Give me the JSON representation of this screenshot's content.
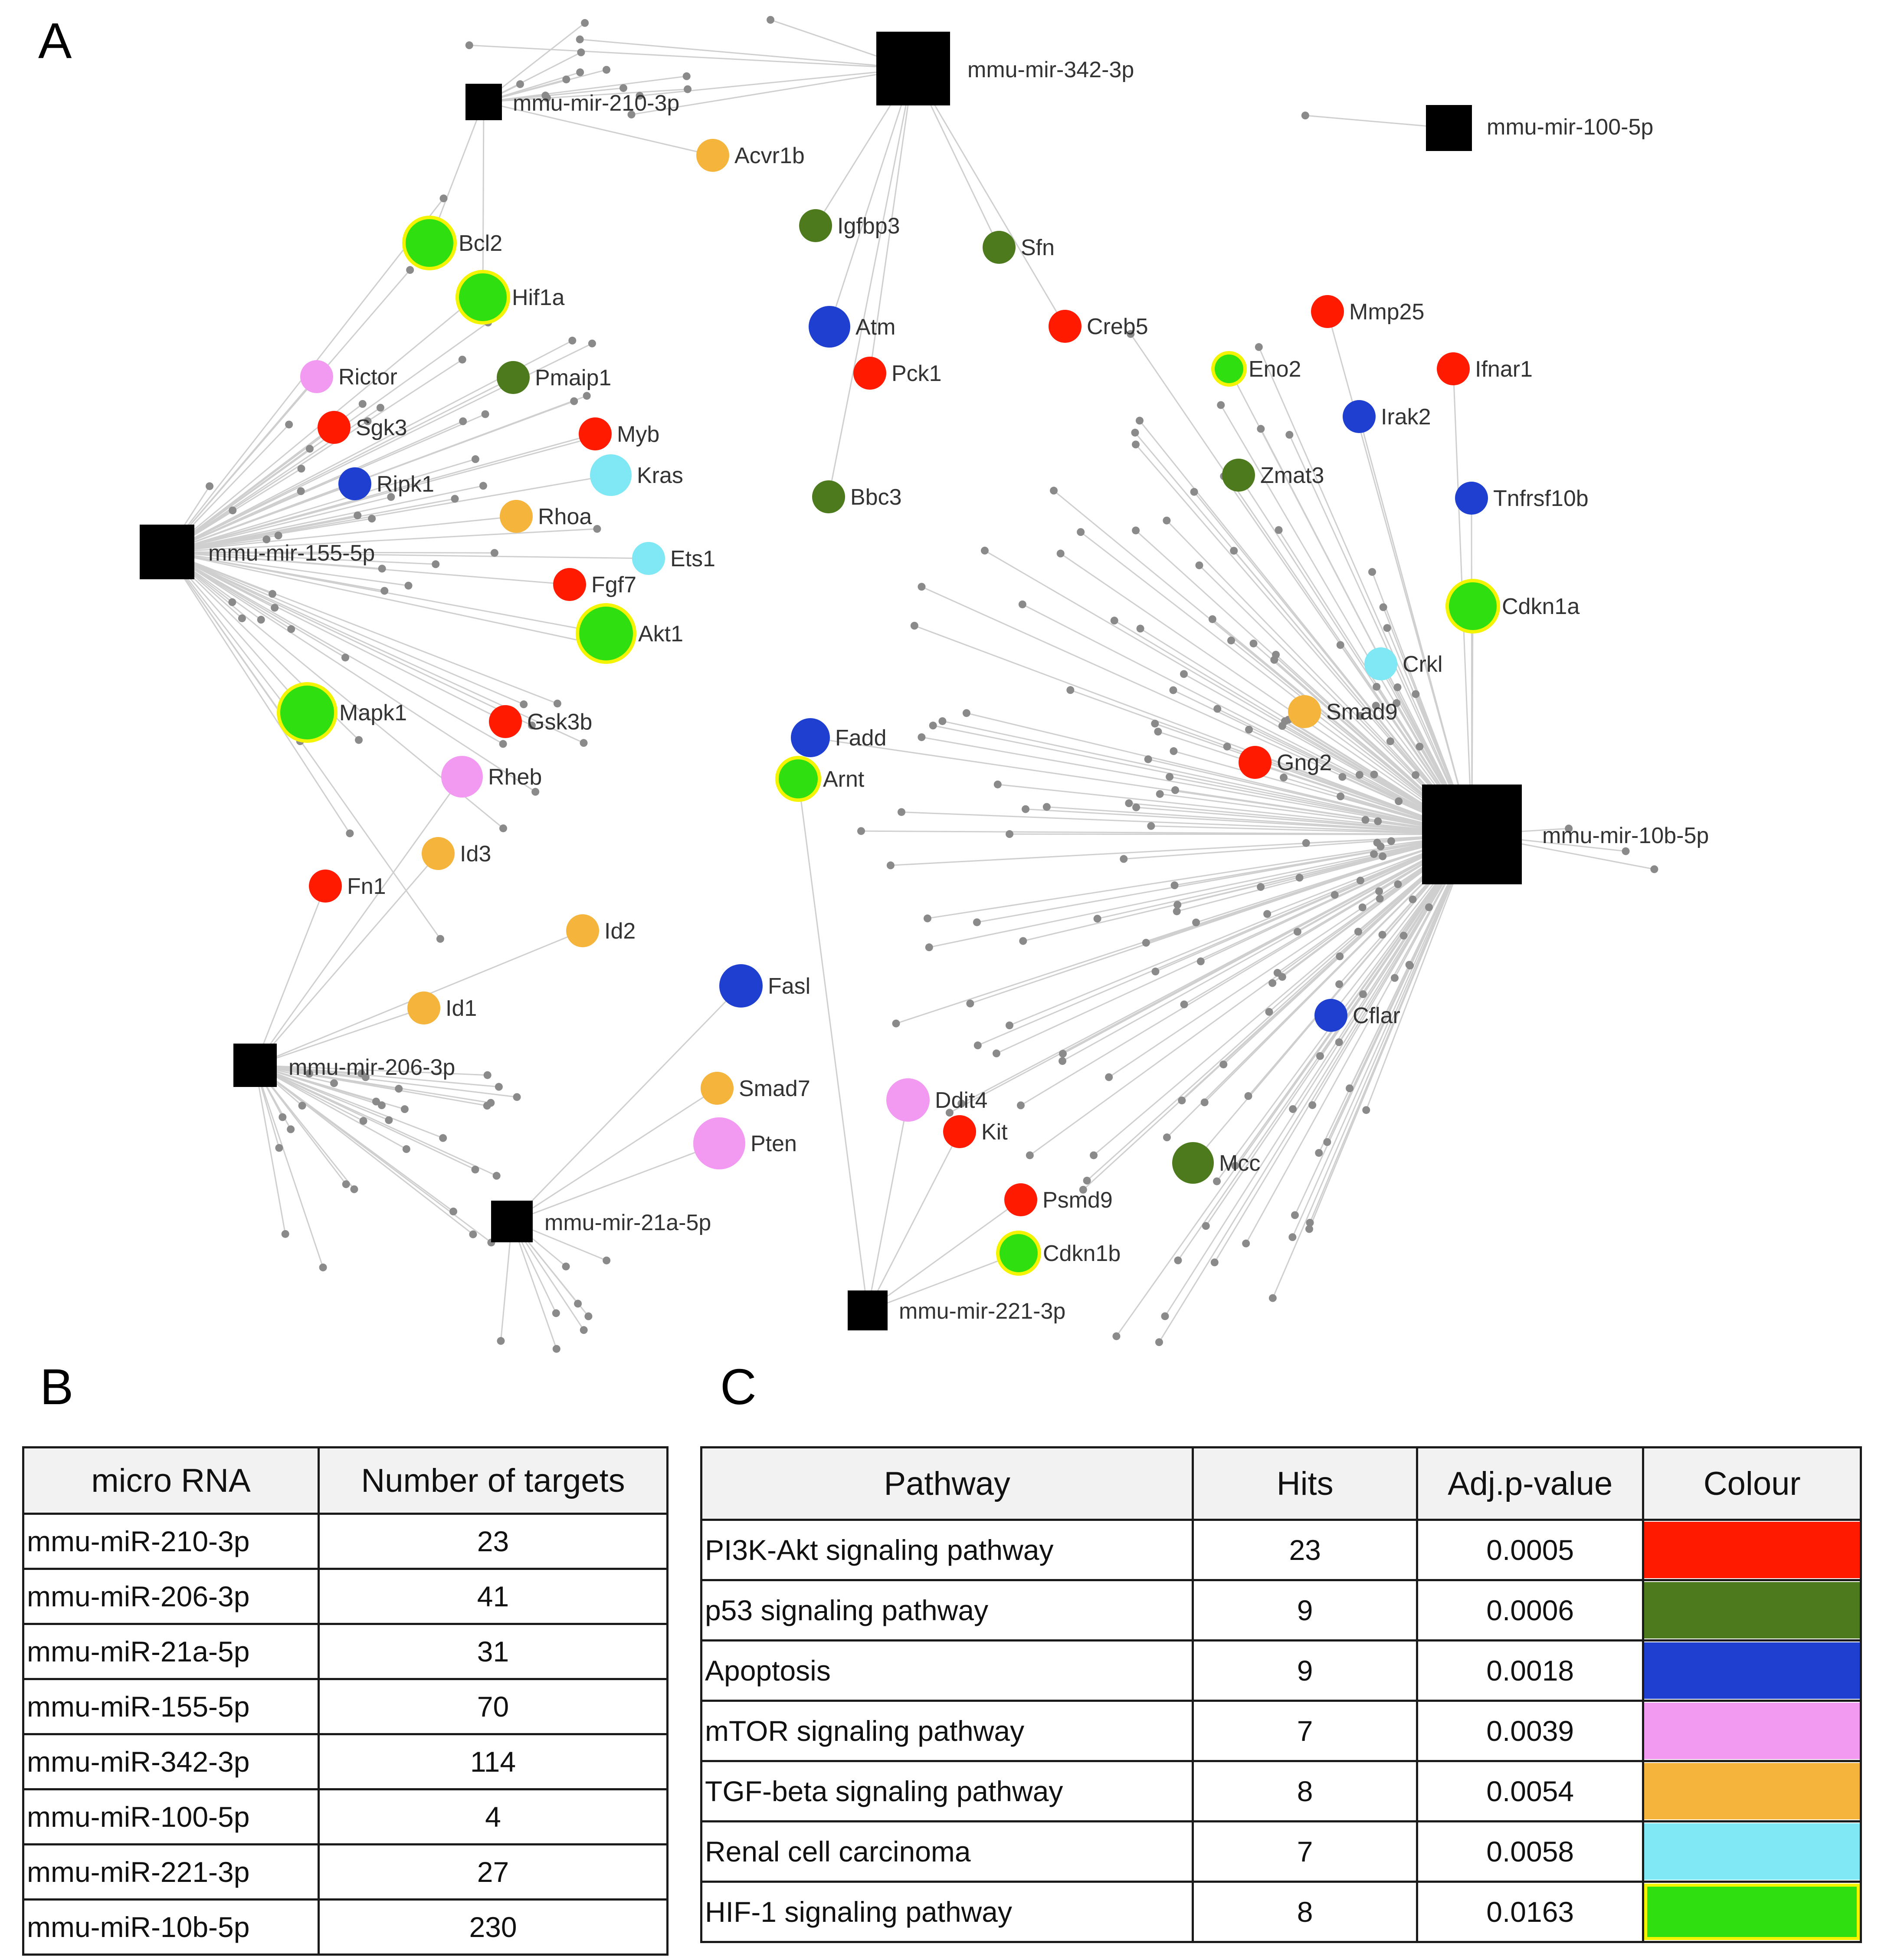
{
  "panels": {
    "a": "A",
    "b": "B",
    "c": "C"
  },
  "colors": {
    "pi3k": "#ff1a00",
    "p53": "#4e7a1e",
    "apoptosis": "#1e3fd0",
    "mtor": "#f29af2",
    "tgf": "#f5b43c",
    "renal": "#7fe8f4",
    "hif": "#2fdf10",
    "hif_ring": "#f4f400",
    "mirna": "#000000",
    "target": "#8a8a8a",
    "edge": "#cfcfcf"
  },
  "mirnas": [
    {
      "id": "m342",
      "label": "mmu-mir-342-3p"
    },
    {
      "id": "m210",
      "label": "mmu-mir-210-3p"
    },
    {
      "id": "m100",
      "label": "mmu-mir-100-5p"
    },
    {
      "id": "m155",
      "label": "mmu-mir-155-5p"
    },
    {
      "id": "m10b",
      "label": "mmu-mir-10b-5p"
    },
    {
      "id": "m206",
      "label": "mmu-mir-206-3p"
    },
    {
      "id": "m21a",
      "label": "mmu-mir-21a-5p"
    },
    {
      "id": "m221",
      "label": "mmu-mir-221-3p"
    }
  ],
  "genes": [
    {
      "label": "Acvr1b",
      "pathway": "tgf",
      "mirna": "m210"
    },
    {
      "label": "Bcl2",
      "pathway": "hif",
      "mirna": "m210"
    },
    {
      "label": "Hif1a",
      "pathway": "hif",
      "mirna": "m210"
    },
    {
      "label": "Igfbp3",
      "pathway": "p53",
      "mirna": "m342"
    },
    {
      "label": "Sfn",
      "pathway": "p53",
      "mirna": "m342"
    },
    {
      "label": "Creb5",
      "pathway": "pi3k",
      "mirna": "m342"
    },
    {
      "label": "Atm",
      "pathway": "apoptosis",
      "mirna": "m342"
    },
    {
      "label": "Pck1",
      "pathway": "pi3k",
      "mirna": "m342"
    },
    {
      "label": "Bbc3",
      "pathway": "p53",
      "mirna": "m342"
    },
    {
      "label": "Rictor",
      "pathway": "mtor",
      "mirna": "m155"
    },
    {
      "label": "Pmaip1",
      "pathway": "p53",
      "mirna": "m155"
    },
    {
      "label": "Sgk3",
      "pathway": "pi3k",
      "mirna": "m155"
    },
    {
      "label": "Myb",
      "pathway": "pi3k",
      "mirna": "m155"
    },
    {
      "label": "Kras",
      "pathway": "renal",
      "mirna": "m155"
    },
    {
      "label": "Ripk1",
      "pathway": "apoptosis",
      "mirna": "m155"
    },
    {
      "label": "Rhoa",
      "pathway": "tgf",
      "mirna": "m155"
    },
    {
      "label": "Ets1",
      "pathway": "renal",
      "mirna": "m155"
    },
    {
      "label": "Fgf7",
      "pathway": "pi3k",
      "mirna": "m155"
    },
    {
      "label": "Akt1",
      "pathway": "hif",
      "mirna": "m155"
    },
    {
      "label": "Mapk1",
      "pathway": "hif",
      "mirna": "m155"
    },
    {
      "label": "Gsk3b",
      "pathway": "pi3k",
      "mirna": "m155"
    },
    {
      "label": "Rheb",
      "pathway": "mtor",
      "mirna": "m206"
    },
    {
      "label": "Id3",
      "pathway": "tgf",
      "mirna": "m206"
    },
    {
      "label": "Fn1",
      "pathway": "pi3k",
      "mirna": "m206"
    },
    {
      "label": "Id2",
      "pathway": "tgf",
      "mirna": "m206"
    },
    {
      "label": "Id1",
      "pathway": "tgf",
      "mirna": "m206"
    },
    {
      "label": "Fasl",
      "pathway": "apoptosis",
      "mirna": "m21a"
    },
    {
      "label": "Smad7",
      "pathway": "tgf",
      "mirna": "m21a"
    },
    {
      "label": "Pten",
      "pathway": "mtor",
      "mirna": "m21a"
    },
    {
      "label": "Fadd",
      "pathway": "apoptosis",
      "mirna": "m10b"
    },
    {
      "label": "Arnt",
      "pathway": "hif",
      "mirna": "m221"
    },
    {
      "label": "Ddit4",
      "pathway": "mtor",
      "mirna": "m221"
    },
    {
      "label": "Kit",
      "pathway": "pi3k",
      "mirna": "m221"
    },
    {
      "label": "Psmd9",
      "pathway": "pi3k",
      "mirna": "m221"
    },
    {
      "label": "Cdkn1b",
      "pathway": "hif",
      "mirna": "m221"
    },
    {
      "label": "Mmp25",
      "pathway": "pi3k",
      "mirna": "m10b"
    },
    {
      "label": "Ifnar1",
      "pathway": "pi3k",
      "mirna": "m10b"
    },
    {
      "label": "Eno2",
      "pathway": "hif",
      "mirna": "m10b"
    },
    {
      "label": "Irak2",
      "pathway": "apoptosis",
      "mirna": "m10b"
    },
    {
      "label": "Zmat3",
      "pathway": "p53",
      "mirna": "m10b"
    },
    {
      "label": "Tnfrsf10b",
      "pathway": "apoptosis",
      "mirna": "m10b"
    },
    {
      "label": "Cdkn1a",
      "pathway": "hif",
      "mirna": "m10b"
    },
    {
      "label": "Crkl",
      "pathway": "renal",
      "mirna": "m10b"
    },
    {
      "label": "Smad9",
      "pathway": "tgf",
      "mirna": "m10b"
    },
    {
      "label": "Gng2",
      "pathway": "pi3k",
      "mirna": "m10b"
    },
    {
      "label": "Cflar",
      "pathway": "apoptosis",
      "mirna": "m10b"
    },
    {
      "label": "Mcc",
      "pathway": "p53",
      "mirna": "m10b"
    }
  ],
  "table_b": {
    "headers": [
      "micro RNA",
      "Number of targets"
    ],
    "rows": [
      {
        "mirna": "mmu-miR-210-3p",
        "targets": "23"
      },
      {
        "mirna": "mmu-miR-206-3p",
        "targets": "41"
      },
      {
        "mirna": "mmu-miR-21a-5p",
        "targets": "31"
      },
      {
        "mirna": "mmu-miR-155-5p",
        "targets": "70"
      },
      {
        "mirna": "mmu-miR-342-3p",
        "targets": "114"
      },
      {
        "mirna": "mmu-miR-100-5p",
        "targets": "4"
      },
      {
        "mirna": "mmu-miR-221-3p",
        "targets": "27"
      },
      {
        "mirna": "mmu-miR-10b-5p",
        "targets": "230"
      }
    ]
  },
  "table_c": {
    "headers": [
      "Pathway",
      "Hits",
      "Adj.p-value",
      "Colour"
    ],
    "rows": [
      {
        "pathway": "PI3K-Akt signaling pathway",
        "hits": "23",
        "pvalue": "0.0005",
        "color": "#ff1a00"
      },
      {
        "pathway": "p53 signaling pathway",
        "hits": "9",
        "pvalue": "0.0006",
        "color": "#4e7a1e"
      },
      {
        "pathway": "Apoptosis",
        "hits": "9",
        "pvalue": "0.0018",
        "color": "#1e3fd0"
      },
      {
        "pathway": "mTOR signaling pathway",
        "hits": "7",
        "pvalue": "0.0039",
        "color": "#f29af2"
      },
      {
        "pathway": "TGF-beta signaling pathway",
        "hits": "8",
        "pvalue": "0.0054",
        "color": "#f5b43c"
      },
      {
        "pathway": "Renal cell carcinoma",
        "hits": "7",
        "pvalue": "0.0058",
        "color": "#7fe8f4"
      },
      {
        "pathway": "HIF-1 signaling pathway",
        "hits": "8",
        "pvalue": "0.0163",
        "color": "#2fdf10",
        "ring": "#f4f400"
      }
    ]
  }
}
